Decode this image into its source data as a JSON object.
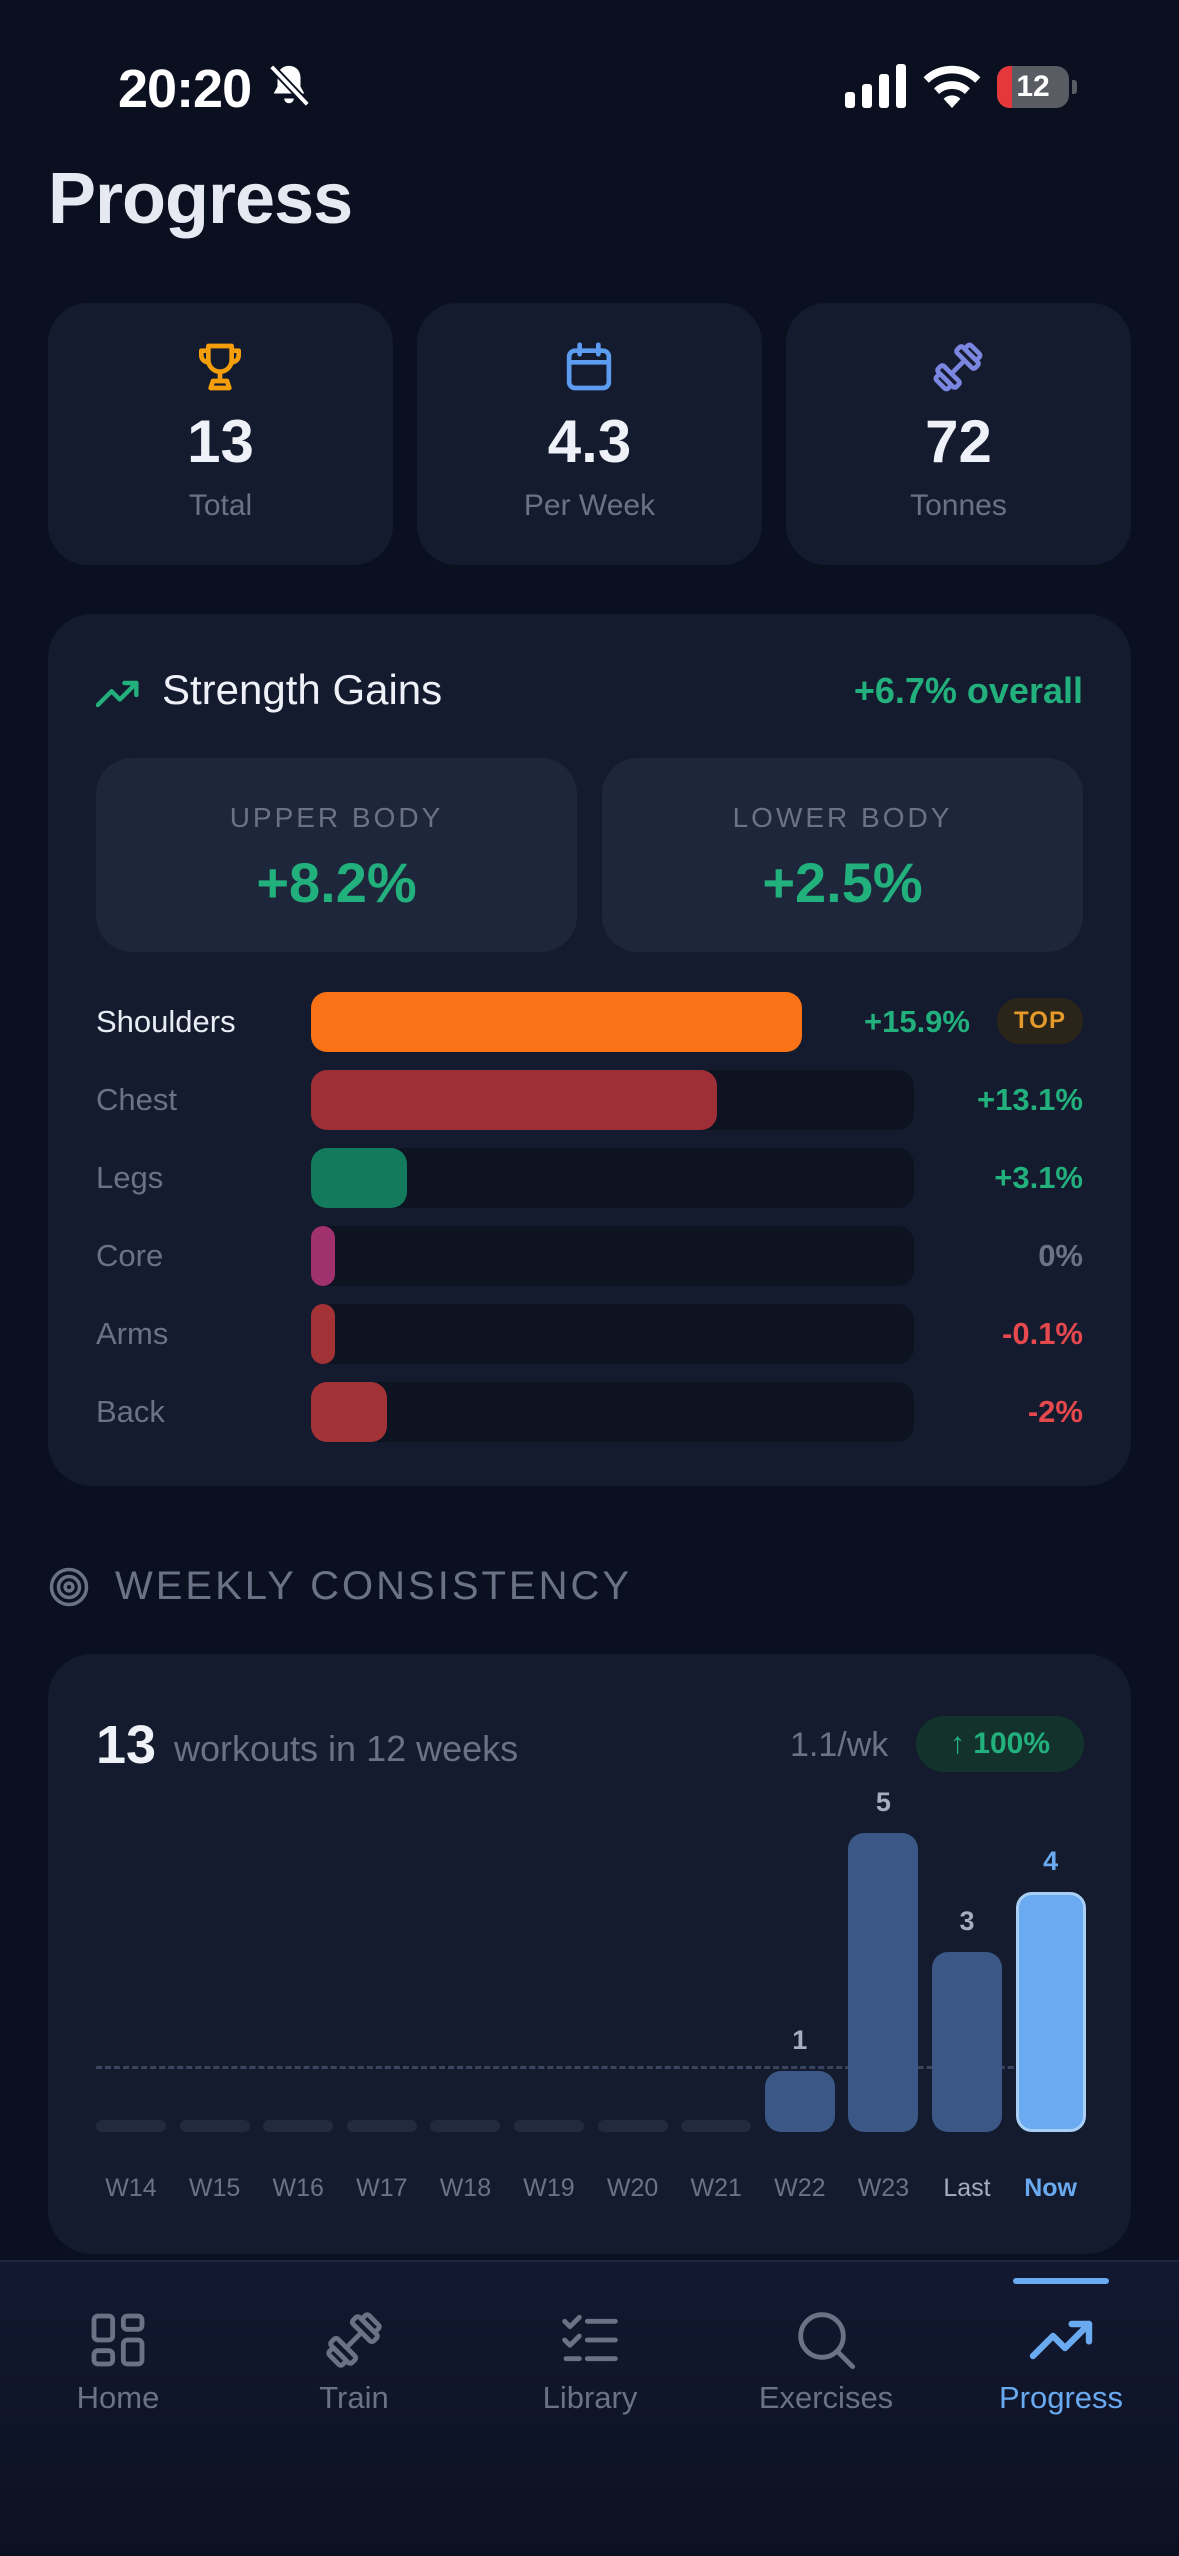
{
  "status_bar": {
    "time": "20:20",
    "battery": "12",
    "battery_level": 0.12
  },
  "page_title": "Progress",
  "stats": [
    {
      "icon": "trophy-icon",
      "value": "13",
      "label": "Total"
    },
    {
      "icon": "calendar-icon",
      "value": "4.3",
      "label": "Per Week"
    },
    {
      "icon": "dumbbell-icon",
      "value": "72",
      "label": "Tonnes"
    }
  ],
  "strength": {
    "title": "Strength Gains",
    "overall": "+6.7% overall",
    "upper": {
      "label": "UPPER BODY",
      "value": "+8.2%"
    },
    "lower": {
      "label": "LOWER BODY",
      "value": "+2.5%"
    },
    "top_badge": "TOP",
    "muscles": [
      {
        "label": "Shoulders",
        "value": "+15.9%",
        "level": 0.159,
        "color": "#f97316",
        "value_color": "#22b07d",
        "top": true
      },
      {
        "label": "Chest",
        "value": "+13.1%",
        "level": 0.131,
        "color": "#9e2f37",
        "value_color": "#22b07d",
        "top": false
      },
      {
        "label": "Legs",
        "value": "+3.1%",
        "level": 0.031,
        "color": "#137a5c",
        "value_color": "#22b07d",
        "top": false
      },
      {
        "label": "Core",
        "value": "0%",
        "level": 0.0,
        "color": "#a1306f",
        "value_color": "#6b7286",
        "top": false
      },
      {
        "label": "Arms",
        "value": "-0.1%",
        "level": -0.001,
        "color": "#a33237",
        "value_color": "#e5484d",
        "top": false
      },
      {
        "label": "Back",
        "value": "-2%",
        "level": -0.02,
        "color": "#a33237",
        "value_color": "#e5484d",
        "top": false
      }
    ]
  },
  "weekly": {
    "section_title": "WEEKLY CONSISTENCY",
    "count": "13",
    "text": "workouts in 12 weeks",
    "rate": "1.1/wk",
    "badge": "↑ 100%",
    "average": 1.1
  },
  "chart_data": {
    "type": "bar",
    "categories": [
      "W14",
      "W15",
      "W16",
      "W17",
      "W18",
      "W19",
      "W20",
      "W21",
      "W22",
      "W23",
      "Last",
      "Now"
    ],
    "values": [
      0,
      0,
      0,
      0,
      0,
      0,
      0,
      0,
      1,
      5,
      3,
      4
    ],
    "data_labels": [
      "",
      "",
      "",
      "",
      "",
      "",
      "",
      "",
      "1",
      "5",
      "3",
      "4"
    ],
    "highlight": "Now",
    "reference_line": 1.1,
    "colors": {
      "bar": "#3a5785",
      "highlight": "#6aaaf0",
      "empty": "#222a40"
    }
  },
  "tabs": [
    {
      "label": "Home",
      "icon": "home-grid-icon",
      "active": false
    },
    {
      "label": "Train",
      "icon": "dumbbell-icon",
      "active": false
    },
    {
      "label": "Library",
      "icon": "checklist-icon",
      "active": false
    },
    {
      "label": "Exercises",
      "icon": "search-icon",
      "active": false
    },
    {
      "label": "Progress",
      "icon": "trending-up-icon",
      "active": true
    }
  ],
  "colors": {
    "background": "#0b1020",
    "card": "#151b2e",
    "positive": "#22b07d",
    "negative": "#e5484d",
    "accent": "#6aaaf0",
    "muted": "#6b7286"
  }
}
